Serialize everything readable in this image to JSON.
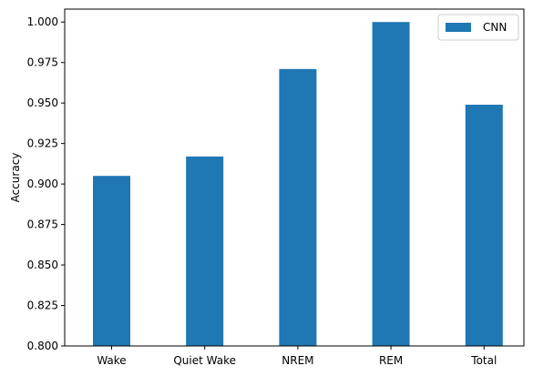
{
  "chart_data": {
    "type": "bar",
    "categories": [
      "Wake",
      "Quiet Wake",
      "NREM",
      "REM",
      "Total"
    ],
    "series": [
      {
        "name": "CNN",
        "values": [
          0.905,
          0.917,
          0.971,
          1.0,
          0.949
        ],
        "color": "#1f77b4"
      }
    ],
    "ylabel": "Accuracy",
    "xlabel": "",
    "ylim": [
      0.8,
      1.008
    ],
    "yticks": [
      "0.800",
      "0.825",
      "0.850",
      "0.875",
      "0.900",
      "0.925",
      "0.950",
      "0.975",
      "1.000"
    ],
    "grid": false,
    "legend_position": "top-right"
  }
}
